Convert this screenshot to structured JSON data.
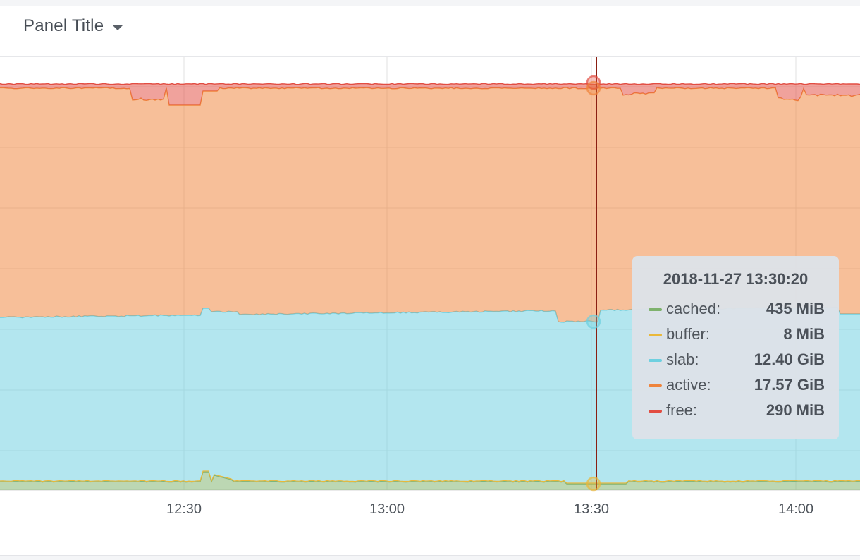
{
  "panel": {
    "title": "Panel Title"
  },
  "colors": {
    "cached": "#7eb26d",
    "buffer": "#eab839",
    "slab": "#6ed0e0",
    "active": "#ef843c",
    "free": "#e24d42",
    "cursor": "#8a1e12",
    "grid": "#e2e2e2",
    "axis_text": "#4f555c"
  },
  "chart_data": {
    "type": "area",
    "stacked": true,
    "x_ticks": [
      "12:30",
      "13:00",
      "13:30",
      "14:00"
    ],
    "series": [
      {
        "name": "cached",
        "color": "#7eb26d"
      },
      {
        "name": "buffer",
        "color": "#eab839"
      },
      {
        "name": "slab",
        "color": "#6ed0e0"
      },
      {
        "name": "active",
        "color": "#ef843c"
      },
      {
        "name": "free",
        "color": "#e24d42"
      }
    ],
    "grid": true,
    "legend": "none"
  },
  "tooltip": {
    "time": "2018-11-27 13:30:20",
    "rows": [
      {
        "name": "cached:",
        "value": "435 MiB",
        "color": "#7eb26d"
      },
      {
        "name": "buffer:",
        "value": "8 MiB",
        "color": "#eab839"
      },
      {
        "name": "slab:",
        "value": "12.40 GiB",
        "color": "#6ed0e0"
      },
      {
        "name": "active:",
        "value": "17.57 GiB",
        "color": "#ef843c"
      },
      {
        "name": "free:",
        "value": "290 MiB",
        "color": "#e24d42"
      }
    ]
  }
}
